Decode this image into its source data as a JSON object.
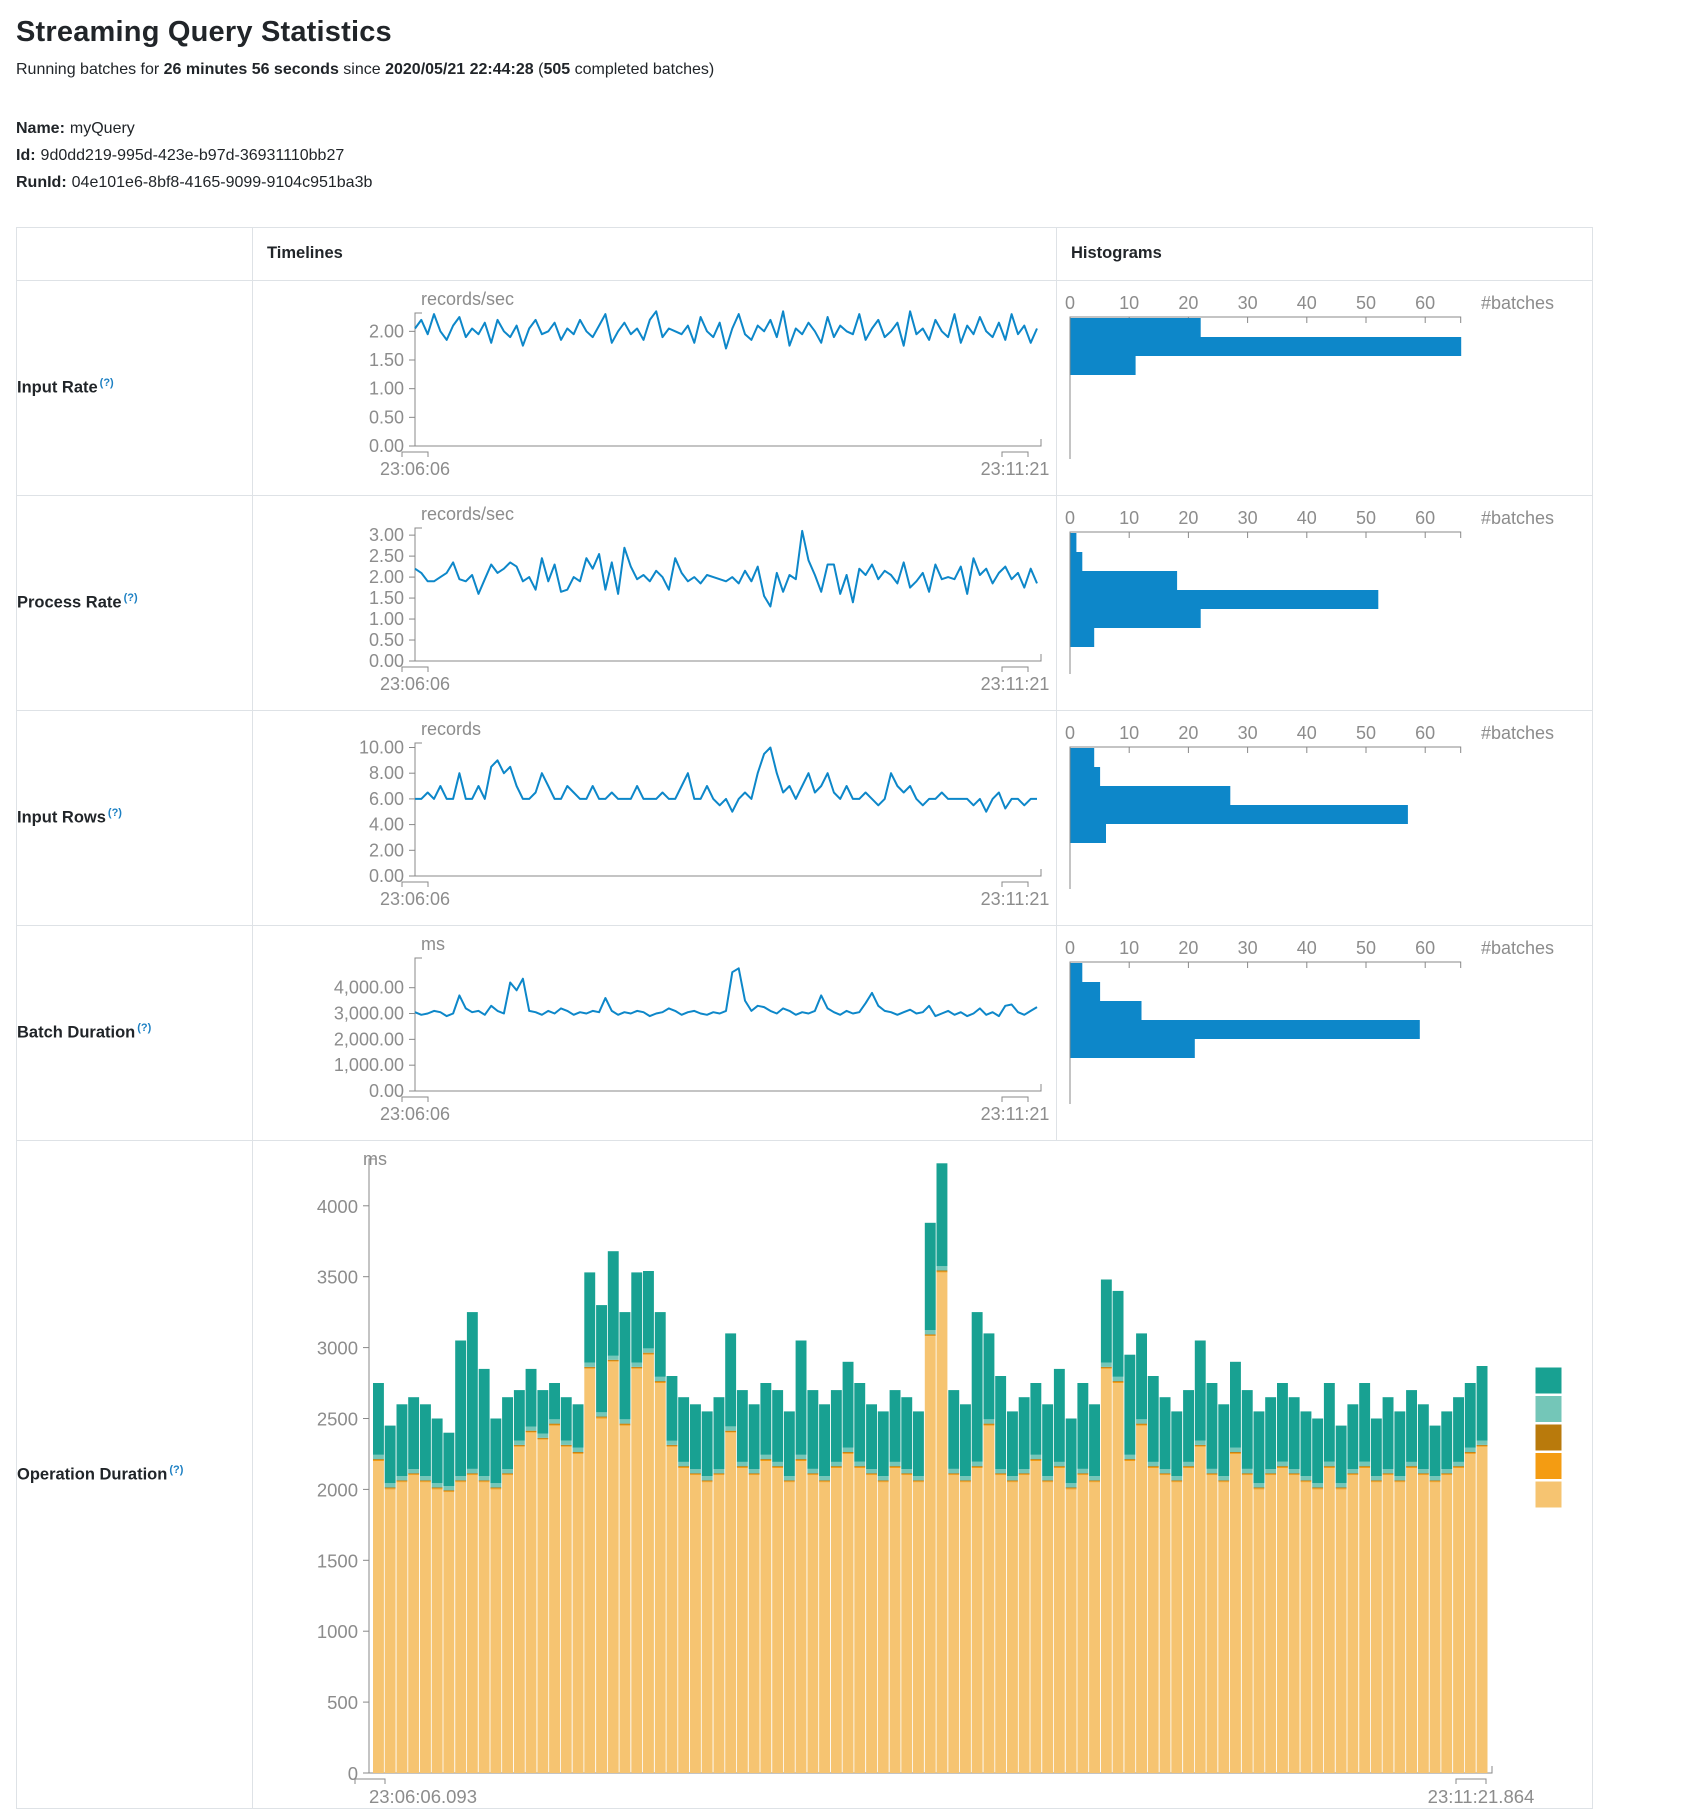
{
  "header": {
    "title": "Streaming Query Statistics",
    "p1": "Running batches for ",
    "duration": "26 minutes 56 seconds",
    "p2": " since ",
    "start_time": "2020/05/21 22:44:28",
    "p3": " (",
    "completed_batches": "505",
    "p4": " completed batches)"
  },
  "meta": {
    "name_label": "Name:",
    "name_value": "myQuery",
    "id_label": "Id:",
    "id_value": "9d0dd219-995d-423e-b97d-36931110bb27",
    "runid_label": "RunId:",
    "runid_value": "04e101e6-8bf8-4165-9099-9104c951ba3b"
  },
  "table": {
    "col_timelines": "Timelines",
    "col_histograms": "Histograms"
  },
  "rows": [
    {
      "label": "Input Rate",
      "help": "(?)"
    },
    {
      "label": "Process Rate",
      "help": "(?)"
    },
    {
      "label": "Input Rows",
      "help": "(?)"
    },
    {
      "label": "Batch Duration",
      "help": "(?)"
    },
    {
      "label": "Operation Duration",
      "help": "(?)"
    }
  ],
  "colors": {
    "line": "#0d87c9",
    "bar": "#0d87c9",
    "axis": "#888888",
    "tick_text": "#8c8c8c",
    "stack_series": [
      "#f6c471",
      "#f49c12",
      "#b97a0c",
      "#74c6b8",
      "#18a192"
    ],
    "legend_order": [
      "#18a192",
      "#74c6b8",
      "#b97a0c",
      "#f49c12",
      "#f6c471"
    ]
  },
  "chart_data": {
    "metrics": [
      {
        "timeline": {
          "type": "line",
          "unit": "records/sec",
          "x_start": "23:06:06",
          "x_end": "23:11:21",
          "y_axis_top": 2.32,
          "y_ticks": [
            {
              "v": 2,
              "l": "2.00"
            },
            {
              "v": 1.5,
              "l": "1.50"
            },
            {
              "v": 1,
              "l": "1.00"
            },
            {
              "v": 0.5,
              "l": "0.50"
            },
            {
              "v": 0,
              "l": "0.00"
            }
          ],
          "values": [
            2.05,
            2.2,
            1.95,
            2.3,
            2.0,
            1.85,
            2.1,
            2.25,
            1.9,
            2.05,
            1.95,
            2.15,
            1.8,
            2.2,
            2.0,
            1.9,
            2.1,
            1.75,
            2.05,
            2.2,
            1.95,
            2.0,
            2.15,
            1.85,
            2.05,
            1.95,
            2.2,
            2.0,
            1.9,
            2.1,
            2.3,
            1.8,
            2.0,
            2.15,
            1.95,
            2.05,
            1.85,
            2.2,
            2.35,
            1.9,
            2.05,
            2.0,
            1.95,
            2.1,
            1.8,
            2.25,
            2.0,
            1.9,
            2.15,
            1.7,
            2.05,
            2.3,
            1.95,
            1.85,
            2.1,
            2.0,
            2.2,
            1.9,
            2.35,
            1.75,
            2.05,
            1.95,
            2.15,
            2.0,
            1.8,
            2.25,
            1.9,
            2.1,
            2.0,
            1.95,
            2.3,
            1.85,
            2.05,
            2.2,
            1.9,
            2.0,
            2.15,
            1.75,
            2.35,
            1.95,
            2.05,
            1.85,
            2.2,
            2.0,
            1.9,
            2.3,
            1.8,
            2.1,
            1.95,
            2.25,
            2.0,
            1.9,
            2.15,
            1.85,
            2.3,
            1.95,
            2.1,
            1.8,
            2.05
          ]
        },
        "histogram": {
          "type": "bar",
          "counts": [
            22,
            66,
            11
          ],
          "x_ticks": [
            0,
            10,
            20,
            30,
            40,
            50,
            60
          ],
          "axis_max": 66,
          "x_label": "#batches"
        }
      },
      {
        "timeline": {
          "type": "line",
          "unit": "records/sec",
          "x_start": "23:06:06",
          "x_end": "23:11:21",
          "y_axis_top": 3.17,
          "y_ticks": [
            {
              "v": 3,
              "l": "3.00"
            },
            {
              "v": 2.5,
              "l": "2.50"
            },
            {
              "v": 2,
              "l": "2.00"
            },
            {
              "v": 1.5,
              "l": "1.50"
            },
            {
              "v": 1,
              "l": "1.00"
            },
            {
              "v": 0.5,
              "l": "0.50"
            },
            {
              "v": 0,
              "l": "0.00"
            }
          ],
          "values": [
            2.2,
            2.1,
            1.9,
            1.9,
            2.0,
            2.1,
            2.35,
            1.95,
            1.9,
            2.05,
            1.6,
            1.95,
            2.3,
            2.1,
            2.2,
            2.35,
            2.25,
            1.9,
            2.0,
            1.7,
            2.45,
            1.9,
            2.3,
            1.65,
            1.7,
            2.0,
            1.9,
            2.45,
            2.2,
            2.55,
            1.7,
            2.35,
            1.6,
            2.7,
            2.25,
            1.95,
            2.05,
            1.9,
            2.15,
            2.0,
            1.7,
            2.45,
            2.1,
            1.9,
            2.0,
            1.85,
            2.05,
            2.0,
            1.95,
            1.9,
            2.0,
            1.85,
            2.15,
            1.9,
            2.25,
            1.55,
            1.3,
            2.1,
            1.65,
            2.05,
            1.95,
            3.1,
            2.4,
            2.05,
            1.65,
            2.3,
            2.3,
            1.6,
            2.05,
            1.4,
            2.2,
            2.05,
            2.3,
            1.95,
            2.15,
            2.05,
            1.85,
            2.35,
            1.75,
            1.9,
            2.1,
            1.65,
            2.3,
            1.95,
            2.0,
            1.95,
            2.25,
            1.6,
            2.45,
            2.05,
            2.2,
            1.85,
            2.1,
            2.25,
            1.95,
            2.1,
            1.75,
            2.2,
            1.85
          ]
        },
        "histogram": {
          "type": "bar",
          "counts": [
            1,
            2,
            18,
            52,
            22,
            4
          ],
          "x_ticks": [
            0,
            10,
            20,
            30,
            40,
            50,
            60
          ],
          "axis_max": 66,
          "x_label": "#batches"
        }
      },
      {
        "timeline": {
          "type": "line",
          "unit": "records",
          "x_start": "23:06:06",
          "x_end": "23:11:21",
          "y_axis_top": 10.35,
          "y_ticks": [
            {
              "v": 10,
              "l": "10.00"
            },
            {
              "v": 8,
              "l": "8.00"
            },
            {
              "v": 6,
              "l": "6.00"
            },
            {
              "v": 4,
              "l": "4.00"
            },
            {
              "v": 2,
              "l": "2.00"
            },
            {
              "v": 0,
              "l": "0.00"
            }
          ],
          "values": [
            6,
            6,
            6.5,
            6,
            7,
            6,
            6,
            8,
            6,
            6,
            7,
            6,
            8.5,
            9,
            8,
            8.5,
            7,
            6,
            6,
            6.5,
            8,
            7,
            6,
            6,
            7,
            6.5,
            6,
            6,
            7,
            6,
            6,
            6.5,
            6,
            6,
            6,
            7,
            6,
            6,
            6,
            6.5,
            6,
            6,
            7,
            8,
            6,
            6,
            7,
            6,
            5.5,
            6,
            5,
            6,
            6.5,
            6,
            8,
            9.5,
            10,
            8,
            6.5,
            7,
            6,
            7,
            8,
            6.5,
            7,
            8,
            6.5,
            6,
            7,
            6,
            6,
            6.5,
            6,
            5.5,
            6,
            8,
            7,
            6.5,
            7,
            6,
            5.5,
            6,
            6,
            6.5,
            6,
            6,
            6,
            6,
            5.5,
            6,
            5,
            6,
            6.5,
            5.25,
            6,
            6,
            5.5,
            6,
            6
          ]
        },
        "histogram": {
          "type": "bar",
          "counts": [
            4,
            5,
            27,
            57,
            6
          ],
          "x_ticks": [
            0,
            10,
            20,
            30,
            40,
            50,
            60
          ],
          "axis_max": 66,
          "x_label": "#batches"
        }
      },
      {
        "timeline": {
          "type": "line",
          "unit": "ms",
          "x_start": "23:06:06",
          "x_end": "23:11:21",
          "y_axis_top": 5150,
          "y_ticks": [
            {
              "v": 4000,
              "l": "4,000.00"
            },
            {
              "v": 3000,
              "l": "3,000.00"
            },
            {
              "v": 2000,
              "l": "2,000.00"
            },
            {
              "v": 1000,
              "l": "1,000.00"
            },
            {
              "v": 0,
              "l": "0.00"
            }
          ],
          "values": [
            3050,
            2950,
            3000,
            3100,
            3050,
            2900,
            3000,
            3700,
            3200,
            3050,
            3100,
            2950,
            3300,
            3100,
            3000,
            4200,
            3900,
            4350,
            3100,
            3050,
            2950,
            3100,
            3000,
            3200,
            3100,
            2950,
            3050,
            3000,
            3100,
            3050,
            3600,
            3100,
            2950,
            3050,
            3000,
            3100,
            3050,
            2900,
            3000,
            3050,
            3200,
            3100,
            2950,
            3050,
            3100,
            3000,
            2950,
            3050,
            3000,
            3100,
            4600,
            4750,
            3500,
            3100,
            3300,
            3250,
            3100,
            3000,
            3200,
            3100,
            2950,
            3050,
            3000,
            3100,
            3700,
            3200,
            3050,
            2950,
            3100,
            3000,
            3050,
            3400,
            3800,
            3300,
            3100,
            3050,
            2950,
            3050,
            3150,
            3000,
            3050,
            3300,
            2900,
            3000,
            3100,
            2950,
            3050,
            2900,
            3000,
            3200,
            2950,
            3050,
            2900,
            3300,
            3350,
            3050,
            2950,
            3100,
            3250
          ]
        },
        "histogram": {
          "type": "bar",
          "counts": [
            2,
            5,
            12,
            59,
            21
          ],
          "x_ticks": [
            0,
            10,
            20,
            30,
            40,
            50,
            60
          ],
          "axis_max": 66,
          "x_label": "#batches"
        }
      }
    ],
    "operation_duration": {
      "type": "stacked-bar",
      "unit": "ms",
      "x_start": "23:06:06.093",
      "x_end": "23:11:21.864",
      "y_ticks": [
        {
          "v": 4000,
          "l": "4000"
        },
        {
          "v": 3500,
          "l": "3500"
        },
        {
          "v": 3000,
          "l": "3000"
        },
        {
          "v": 2500,
          "l": "2500"
        },
        {
          "v": 2000,
          "l": "2000"
        },
        {
          "v": 1500,
          "l": "1500"
        },
        {
          "v": 1000,
          "l": "1000"
        },
        {
          "v": 500,
          "l": "500"
        },
        {
          "v": 0,
          "l": "0"
        }
      ],
      "y_max_axis": 4330,
      "sliver_constants": {
        "orange": 8,
        "ochre": 6,
        "light_teal": 30
      },
      "bottom_series": [
        2200,
        2000,
        2050,
        2100,
        2050,
        2000,
        1980,
        2050,
        2100,
        2050,
        2000,
        2100,
        2300,
        2400,
        2350,
        2450,
        2300,
        2250,
        2850,
        2500,
        2900,
        2450,
        2850,
        2950,
        2750,
        2300,
        2150,
        2100,
        2050,
        2100,
        2400,
        2150,
        2100,
        2200,
        2150,
        2050,
        2200,
        2100,
        2050,
        2150,
        2250,
        2150,
        2100,
        2050,
        2150,
        2100,
        2050,
        3080,
        3530,
        2100,
        2050,
        2150,
        2450,
        2100,
        2050,
        2100,
        2200,
        2050,
        2150,
        2000,
        2100,
        2050,
        2850,
        2750,
        2200,
        2450,
        2150,
        2100,
        2050,
        2150,
        2300,
        2100,
        2050,
        2250,
        2100,
        2000,
        2100,
        2150,
        2100,
        2050,
        2000,
        2150,
        2000,
        2100,
        2150,
        2050,
        2100,
        2050,
        2150,
        2100,
        2050,
        2100,
        2150,
        2250,
        2300
      ],
      "totals": [
        2750,
        2450,
        2600,
        2650,
        2600,
        2500,
        2400,
        3050,
        3250,
        2850,
        2500,
        2650,
        2700,
        2850,
        2700,
        2750,
        2650,
        2600,
        3530,
        3300,
        3680,
        3250,
        3530,
        3540,
        3250,
        2800,
        2650,
        2600,
        2550,
        2650,
        3100,
        2700,
        2600,
        2750,
        2700,
        2550,
        3050,
        2700,
        2600,
        2700,
        2900,
        2750,
        2600,
        2550,
        2700,
        2650,
        2550,
        3880,
        4300,
        2700,
        2600,
        3250,
        3100,
        2800,
        2550,
        2650,
        2750,
        2600,
        2850,
        2500,
        2750,
        2600,
        3480,
        3400,
        2950,
        3100,
        2800,
        2650,
        2550,
        2700,
        3050,
        2750,
        2600,
        2900,
        2700,
        2550,
        2650,
        2750,
        2650,
        2550,
        2500,
        2750,
        2450,
        2600,
        2750,
        2500,
        2650,
        2550,
        2700,
        2600,
        2450,
        2550,
        2650,
        2750,
        2870
      ],
      "legend_colors": [
        "#18a192",
        "#74c6b8",
        "#b97a0c",
        "#f49c12",
        "#f6c471"
      ]
    }
  }
}
